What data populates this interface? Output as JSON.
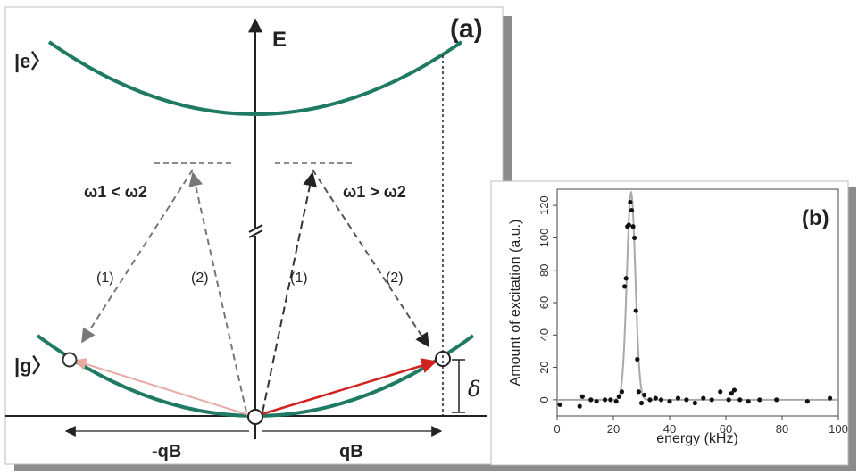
{
  "panel_a": {
    "panel_label": "(a)",
    "energy_axis_label": "E",
    "excited_state_label": "|e〉",
    "ground_state_label": "|g〉",
    "left_condition": "ω1 < ω2",
    "right_condition": "ω1 > ω2",
    "left_beam_1": "(1)",
    "left_beam_2": "(2)",
    "right_beam_1": "(1)",
    "right_beam_2": "(2)",
    "detuning_label": "δ",
    "neg_momentum_label": "-qB",
    "pos_momentum_label": "qB",
    "colors": {
      "dispersion_curve": "#1f7a63",
      "arrow_strong": "#d2211f",
      "arrow_faint": "#e9a9a3",
      "beam_dash": "#777777",
      "shadow": "#8a8a8a"
    }
  },
  "panel_b": {
    "panel_label": "(b)",
    "chart_data": {
      "type": "scatter",
      "title": "",
      "xlabel": "energy (kHz)",
      "ylabel": "Amount of excitation (a.u.)",
      "xlim": [
        0,
        100
      ],
      "ylim": [
        -10,
        130
      ],
      "xticks": [
        0,
        20,
        40,
        60,
        80,
        100
      ],
      "yticks": [
        0,
        20,
        40,
        60,
        80,
        100,
        120
      ],
      "grid": false,
      "series": [
        {
          "kind": "points",
          "x": [
            1,
            8,
            9,
            12,
            14,
            17,
            19,
            21,
            22,
            23,
            24,
            24.5,
            25,
            25.5,
            26,
            26.5,
            27,
            27.5,
            28,
            28.5,
            29,
            30,
            31,
            33,
            35,
            37,
            40,
            43,
            46,
            49,
            52,
            55,
            58,
            61,
            62,
            63,
            65,
            68,
            72,
            78,
            89,
            97
          ],
          "y": [
            -3,
            -4,
            2,
            0,
            -1,
            0,
            0,
            -1,
            2,
            5,
            70,
            75,
            107,
            108,
            122,
            117,
            107,
            100,
            55,
            25,
            5,
            -2,
            3,
            0,
            1,
            0,
            -1,
            1,
            0,
            -2,
            1,
            0,
            5,
            0,
            4,
            6,
            0,
            -1,
            0,
            0,
            -1,
            1
          ]
        },
        {
          "kind": "fit",
          "center": 26.3,
          "width": 1.5,
          "amplitude": 128,
          "baseline": 0
        }
      ]
    }
  }
}
